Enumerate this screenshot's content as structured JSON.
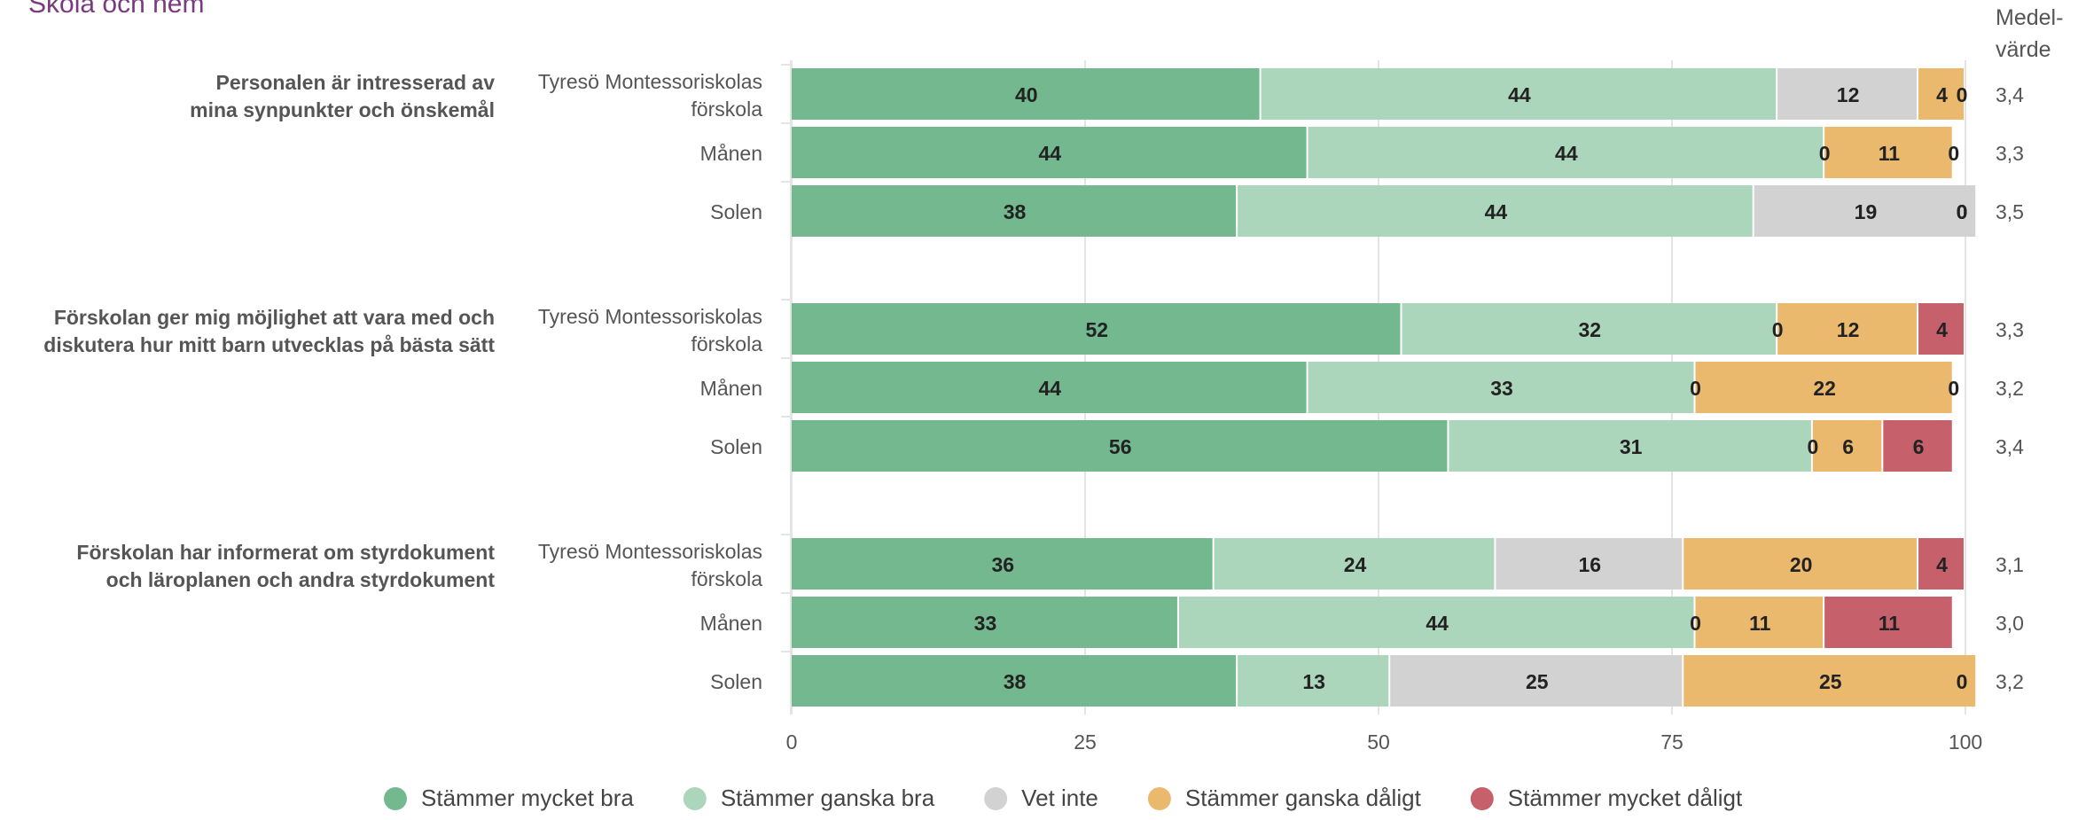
{
  "title": "Skola och hem",
  "mean_header": [
    "Medel-",
    "värde"
  ],
  "colors": {
    "Stämmer mycket bra": "#73b88e",
    "Stämmer ganska bra": "#acd6bb",
    "Vet inte": "#d2d2d2",
    "Stämmer ganska dåligt": "#ebb96d",
    "Stämmer mycket dåligt": "#c6616c",
    "grid": "#e4e4e4",
    "text": "#555555",
    "value_text": "#222222"
  },
  "chart_data": {
    "type": "bar",
    "orientation": "horizontal",
    "stacked": true,
    "xlim": [
      0,
      100
    ],
    "xticks": [
      0,
      25,
      50,
      75,
      100
    ],
    "legend_position": "bottom",
    "legend": [
      "Stämmer mycket bra",
      "Stämmer ganska bra",
      "Vet inte",
      "Stämmer ganska dåligt",
      "Stämmer mycket dåligt"
    ],
    "groups": [
      {
        "question": [
          "Personalen är intresserad av",
          "mina synpunkter och önskemål"
        ],
        "rows": [
          {
            "label": [
              "Tyresö Montessoriskolas",
              "förskola"
            ],
            "values": [
              40,
              44,
              12,
              4,
              0
            ],
            "mean": "3,4"
          },
          {
            "label": [
              "Månen"
            ],
            "values": [
              44,
              44,
              0,
              11,
              0
            ],
            "mean": "3,3"
          },
          {
            "label": [
              "Solen"
            ],
            "values": [
              38,
              44,
              19,
              0,
              0
            ],
            "mean": "3,5"
          }
        ]
      },
      {
        "question": [
          "Förskolan ger mig möjlighet att vara med och",
          "diskutera hur mitt barn utvecklas på bästa sätt"
        ],
        "rows": [
          {
            "label": [
              "Tyresö Montessoriskolas",
              "förskola"
            ],
            "values": [
              52,
              32,
              0,
              12,
              4
            ],
            "mean": "3,3"
          },
          {
            "label": [
              "Månen"
            ],
            "values": [
              44,
              33,
              0,
              22,
              0
            ],
            "mean": "3,2"
          },
          {
            "label": [
              "Solen"
            ],
            "values": [
              56,
              31,
              0,
              6,
              6
            ],
            "mean": "3,4"
          }
        ]
      },
      {
        "question": [
          "Förskolan har informerat om styrdokument",
          "och läroplanen och andra styrdokument"
        ],
        "rows": [
          {
            "label": [
              "Tyresö Montessoriskolas",
              "förskola"
            ],
            "values": [
              36,
              24,
              16,
              20,
              4
            ],
            "mean": "3,1"
          },
          {
            "label": [
              "Månen"
            ],
            "values": [
              33,
              44,
              0,
              11,
              11
            ],
            "mean": "3,0"
          },
          {
            "label": [
              "Solen"
            ],
            "values": [
              38,
              13,
              25,
              25,
              0
            ],
            "mean": "3,2"
          }
        ]
      }
    ]
  }
}
